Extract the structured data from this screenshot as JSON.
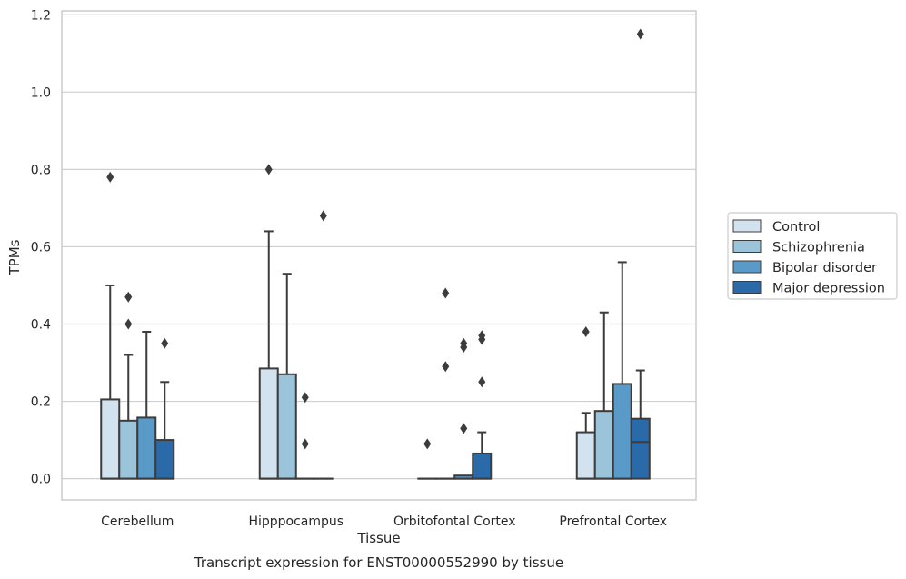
{
  "chart_data": {
    "type": "box",
    "title": "",
    "caption": "Transcript expression for ENST00000552990 by tissue",
    "xlabel": "Tissue",
    "ylabel": "TPMs",
    "ylim": [
      -0.055,
      1.21
    ],
    "yticks": [
      0.0,
      0.2,
      0.4,
      0.6,
      0.8,
      1.0,
      1.2
    ],
    "ytick_labels": [
      "0.0",
      "0.2",
      "0.4",
      "0.6",
      "0.8",
      "1.0",
      "1.2"
    ],
    "grid": "horizontal",
    "legend_position": "right",
    "categories": [
      "Cerebellum",
      "Hipppocampus",
      "Orbitofontal Cortex",
      "Prefrontal Cortex"
    ],
    "series": [
      {
        "name": "Control",
        "color": "#d3e2ef",
        "boxes": [
          {
            "min": 0.0,
            "q1": 0.0,
            "median": 0.0,
            "q3": 0.205,
            "max": 0.5,
            "outliers": [
              0.78
            ]
          },
          {
            "min": 0.0,
            "q1": 0.0,
            "median": 0.0,
            "q3": 0.285,
            "max": 0.64,
            "outliers": [
              0.8
            ]
          },
          {
            "min": 0.0,
            "q1": 0.0,
            "median": 0.0,
            "q3": 0.0,
            "max": 0.0,
            "outliers": [
              0.09
            ]
          },
          {
            "min": 0.0,
            "q1": 0.0,
            "median": 0.0,
            "q3": 0.12,
            "max": 0.17,
            "outliers": [
              0.38
            ]
          }
        ]
      },
      {
        "name": "Schizophrenia",
        "color": "#9bc3da",
        "boxes": [
          {
            "min": 0.0,
            "q1": 0.0,
            "median": 0.0,
            "q3": 0.15,
            "max": 0.32,
            "outliers": [
              0.4,
              0.47
            ]
          },
          {
            "min": 0.0,
            "q1": 0.0,
            "median": 0.0,
            "q3": 0.27,
            "max": 0.53,
            "outliers": []
          },
          {
            "min": 0.0,
            "q1": 0.0,
            "median": 0.0,
            "q3": 0.0,
            "max": 0.0,
            "outliers": [
              0.29,
              0.48
            ]
          },
          {
            "min": 0.0,
            "q1": 0.0,
            "median": 0.0,
            "q3": 0.175,
            "max": 0.43,
            "outliers": []
          }
        ]
      },
      {
        "name": "Bipolar disorder",
        "color": "#5a9ac8",
        "boxes": [
          {
            "min": 0.0,
            "q1": 0.0,
            "median": 0.0,
            "q3": 0.158,
            "max": 0.38,
            "outliers": []
          },
          {
            "min": 0.0,
            "q1": 0.0,
            "median": 0.0,
            "q3": 0.0,
            "max": 0.0,
            "outliers": [
              0.09,
              0.21
            ]
          },
          {
            "min": 0.0,
            "q1": 0.0,
            "median": 0.0,
            "q3": 0.008,
            "max": 0.008,
            "outliers": [
              0.13,
              0.34,
              0.35
            ]
          },
          {
            "min": 0.0,
            "q1": 0.0,
            "median": 0.0,
            "q3": 0.245,
            "max": 0.56,
            "outliers": []
          }
        ]
      },
      {
        "name": "Major depression",
        "color": "#2a6aa9",
        "boxes": [
          {
            "min": 0.0,
            "q1": 0.0,
            "median": 0.0,
            "q3": 0.1,
            "max": 0.25,
            "outliers": [
              0.35
            ]
          },
          {
            "min": 0.0,
            "q1": 0.0,
            "median": 0.0,
            "q3": 0.0,
            "max": 0.0,
            "outliers": [
              0.68
            ]
          },
          {
            "min": 0.0,
            "q1": 0.0,
            "median": 0.0,
            "q3": 0.065,
            "max": 0.12,
            "outliers": [
              0.25,
              0.36,
              0.37
            ]
          },
          {
            "min": 0.0,
            "q1": 0.0,
            "median": 0.095,
            "q3": 0.155,
            "max": 0.28,
            "outliers": [
              1.15
            ]
          }
        ]
      }
    ]
  }
}
